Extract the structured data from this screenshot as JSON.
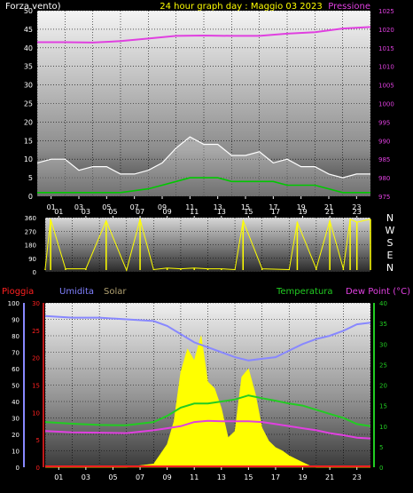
{
  "colors": {
    "wind_gust": "#ffffff",
    "wind_avg": "#00c800",
    "pressure": "#e040e0",
    "direction": "#ffff00",
    "humidity": "#8888ff",
    "solar": "#ffff00",
    "temperature": "#22cc22",
    "dewpoint": "#e040e0",
    "rain": "#ff2020",
    "title": "#ffff00",
    "header_white": "#ffffff",
    "humidity_label": "#8080ff",
    "solar_label": "#b0a070"
  },
  "chart_data": [
    {
      "type": "line",
      "title": "24 hour graph day : Maggio 03 2023",
      "left_label": "Forza vento)",
      "right_label": "Pressione",
      "x_ticks": [
        "01",
        "03",
        "05",
        "07",
        "09",
        "11",
        "13",
        "15",
        "17",
        "19",
        "21",
        "23"
      ],
      "y_left_ticks": [
        "0",
        "5",
        "10",
        "15",
        "20",
        "25",
        "30",
        "35",
        "40",
        "45",
        "50"
      ],
      "y_left_range": [
        0,
        50
      ],
      "y_right_ticks": [
        "975",
        "980",
        "985",
        "990",
        "995",
        "1000",
        "1005",
        "1010",
        "1015",
        "1020",
        "1025"
      ],
      "y_right_range": [
        975,
        1025
      ],
      "series": [
        {
          "key": "pressure",
          "x": [
            0,
            2,
            4,
            6,
            8,
            10,
            12,
            14,
            16,
            18,
            20,
            22,
            24
          ],
          "values": [
            1016.5,
            1016.5,
            1016.4,
            1016.8,
            1017.5,
            1018.2,
            1018.3,
            1018.2,
            1018.2,
            1018.8,
            1019.2,
            1020.2,
            1020.6
          ]
        },
        {
          "key": "wind_gust",
          "x": [
            0,
            1,
            2,
            3,
            4,
            5,
            6,
            7,
            8,
            9,
            10,
            11,
            12,
            13,
            14,
            15,
            16,
            17,
            18,
            19,
            20,
            21,
            22,
            23,
            24
          ],
          "values": [
            9,
            10,
            10,
            7,
            8,
            8,
            6,
            6,
            7,
            9,
            13,
            16,
            14,
            14,
            11,
            11,
            12,
            9,
            10,
            8,
            8,
            6,
            5,
            6,
            6
          ]
        },
        {
          "key": "wind_avg",
          "x": [
            0,
            2,
            4,
            6,
            8,
            9,
            10,
            11,
            12,
            13,
            14,
            15,
            16,
            17,
            18,
            19,
            20,
            21,
            22,
            23,
            24
          ],
          "values": [
            1,
            1,
            1,
            1,
            2,
            3,
            4,
            5,
            5,
            5,
            4,
            4,
            4,
            4,
            3,
            3,
            3,
            2,
            1,
            1,
            1
          ]
        }
      ]
    },
    {
      "type": "scatter",
      "y_ticks": [
        "0",
        "90",
        "180",
        "270",
        "360"
      ],
      "y_range": [
        0,
        360
      ],
      "direction_letters": [
        "N",
        "W",
        "S",
        "E",
        "N"
      ],
      "x_ticks": [
        "01",
        "03",
        "05",
        "07",
        "09",
        "11",
        "13",
        "15",
        "17",
        "19",
        "21",
        "23"
      ],
      "series": [
        {
          "key": "direction",
          "x": [
            0,
            0.4,
            1.5,
            3,
            4.5,
            6,
            7,
            8,
            9,
            10,
            11,
            12,
            13,
            14,
            14.6,
            16,
            18,
            18.6,
            20,
            21,
            22,
            22.5,
            23,
            24
          ],
          "values": [
            20,
            350,
            20,
            20,
            340,
            10,
            350,
            15,
            25,
            20,
            25,
            20,
            20,
            15,
            340,
            20,
            15,
            330,
            20,
            340,
            20,
            350,
            330,
            350
          ]
        }
      ]
    },
    {
      "type": "line",
      "left_label": "Pioggia",
      "humidity_label": "Umidita",
      "solar_label": "Solar",
      "temp_label": "Temperatura",
      "dew_label": "Dew Point (°C)",
      "x_ticks": [
        "01",
        "03",
        "05",
        "07",
        "09",
        "11",
        "13",
        "15",
        "17",
        "19",
        "21",
        "23"
      ],
      "y_hum_ticks": [
        "0",
        "10",
        "20",
        "30",
        "40",
        "50",
        "60",
        "70",
        "80",
        "90",
        "100"
      ],
      "y_hum_range": [
        0,
        100
      ],
      "y_rain_ticks": [
        "0",
        "5",
        "10",
        "15",
        "20",
        "25",
        "30"
      ],
      "y_rain_range": [
        0,
        30
      ],
      "y_temp_ticks": [
        "0",
        "5",
        "10",
        "15",
        "20",
        "25",
        "30",
        "35",
        "40"
      ],
      "y_temp_range": [
        0,
        40
      ],
      "series": [
        {
          "key": "humidity",
          "x": [
            0,
            2,
            4,
            6,
            8,
            9,
            10,
            11,
            12,
            13,
            14,
            15,
            16,
            17,
            18,
            19,
            20,
            21,
            22,
            23,
            24
          ],
          "values": [
            92,
            91,
            91,
            90,
            89,
            86,
            81,
            76,
            73,
            70,
            67,
            65,
            66,
            67,
            71,
            75,
            78,
            80,
            83,
            87,
            88
          ]
        },
        {
          "key": "temperature",
          "x": [
            0,
            2,
            4,
            6,
            8,
            9,
            10,
            11,
            12,
            13,
            14,
            15,
            16,
            17,
            18,
            19,
            20,
            21,
            22,
            23,
            24
          ],
          "values": [
            11,
            10.6,
            10.3,
            10.2,
            11,
            12.5,
            14.5,
            15.5,
            15.5,
            16,
            16.5,
            17.5,
            16.8,
            16.2,
            15.5,
            15,
            14,
            13,
            12,
            10.5,
            10
          ]
        },
        {
          "key": "dewpoint",
          "x": [
            0,
            2,
            4,
            6,
            8,
            9,
            10,
            11,
            12,
            13,
            14,
            15,
            16,
            17,
            18,
            19,
            20,
            21,
            22,
            23,
            24
          ],
          "values": [
            8.8,
            8.5,
            8.4,
            8.3,
            9,
            9.5,
            10,
            11,
            11.3,
            11.2,
            11.2,
            11.2,
            11,
            10.5,
            10,
            9.5,
            9,
            8.3,
            7.8,
            7.2,
            7
          ]
        },
        {
          "key": "solar",
          "x": [
            0,
            6,
            7,
            8,
            8.5,
            9,
            9.5,
            10,
            10.5,
            11,
            11.5,
            12,
            12.5,
            13,
            13.5,
            14,
            14.5,
            15,
            15.5,
            16,
            16.5,
            17,
            17.5,
            18,
            18.5,
            19,
            19.5,
            20,
            24
          ],
          "values": [
            0,
            0,
            1,
            2,
            8,
            14,
            28,
            58,
            72,
            65,
            80,
            52,
            48,
            36,
            18,
            22,
            55,
            60,
            45,
            24,
            16,
            12,
            10,
            7,
            5,
            3,
            1,
            0,
            0
          ]
        }
      ]
    }
  ]
}
